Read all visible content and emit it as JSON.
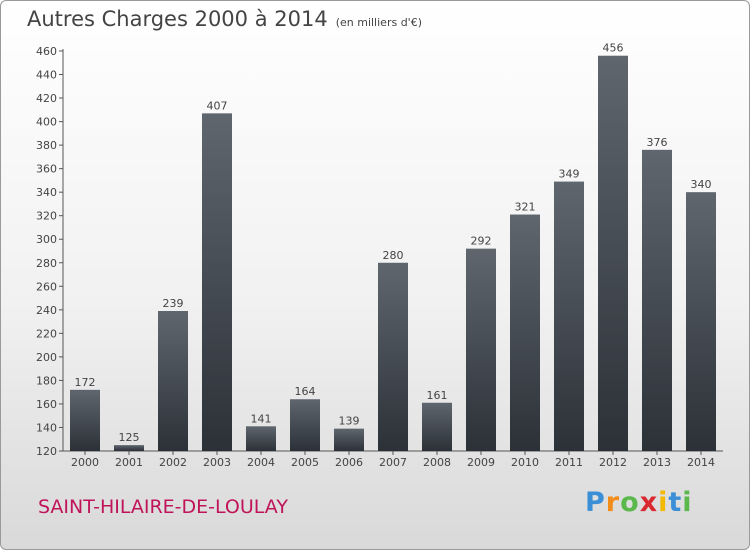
{
  "chart_data": {
    "type": "bar",
    "title": "Autres Charges 2000 à 2014",
    "subtitle": "(en milliers d'€)",
    "categories": [
      "2000",
      "2001",
      "2002",
      "2003",
      "2004",
      "2005",
      "2006",
      "2007",
      "2008",
      "2009",
      "2010",
      "2011",
      "2012",
      "2013",
      "2014"
    ],
    "values": [
      172,
      125,
      239,
      407,
      141,
      164,
      139,
      280,
      161,
      292,
      321,
      349,
      456,
      376,
      340
    ],
    "ylim": [
      120,
      460
    ],
    "yticks": [
      120,
      140,
      160,
      180,
      200,
      220,
      240,
      260,
      280,
      300,
      320,
      340,
      360,
      380,
      400,
      420,
      440,
      460
    ],
    "grid": false,
    "data_labels": true
  },
  "location": "SAINT-HILAIRE-DE-LOULAY",
  "logo": {
    "letters": [
      "P",
      "r",
      "o",
      "x",
      "i",
      "t",
      "i"
    ],
    "colors": [
      "#3a8fd6",
      "#f28c1a",
      "#5bb84a",
      "#d9282f",
      "#f5b800",
      "#3a8fd6",
      "#5bb84a"
    ]
  },
  "colors": {
    "bar_top": "#5f666e",
    "bar_bottom": "#2c3138",
    "axis": "#555555",
    "text": "#444444"
  }
}
